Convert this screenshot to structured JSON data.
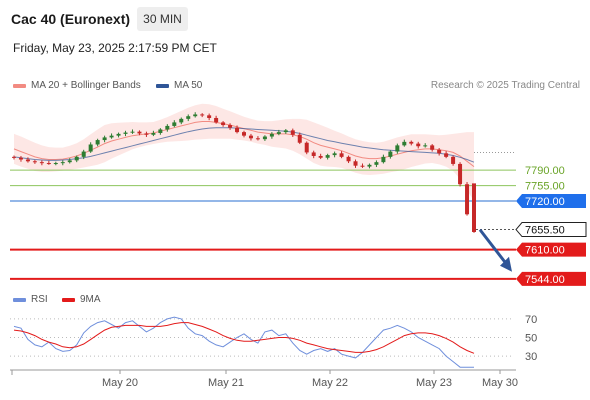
{
  "header": {
    "title": "Cac 40 (Euronext)",
    "timeframe": "30 MIN",
    "datetime": "Friday, May 23, 2025 2:17:59 PM CET"
  },
  "legend": {
    "bollinger_label": "MA 20 + Bollinger Bands",
    "ma50_label": "MA 50",
    "credit": "Research © 2025 Trading Central",
    "rsi_label": "RSI",
    "ma9_label": "9MA"
  },
  "colors": {
    "bollinger": "#f28b82",
    "band_fill": "#fde3e1",
    "ma50": "#2f5597",
    "green_level": "#8dc45d",
    "green_text": "#6aa428",
    "blue_level": "#2a6fd1",
    "blue_box": "#1f6feb",
    "red_level": "#e31b1b",
    "current_box": "#222222",
    "arrow": "#2f5597",
    "rsi": "#6f8fdc",
    "ma9": "#e31b1b",
    "candle_up": "#2e7d32",
    "candle_down": "#c62828"
  },
  "chart_data": [
    {
      "type": "candlestick",
      "title": "Cac 40 (Euronext)",
      "timeframe": "30 MIN",
      "x_ticks": [
        "May 20",
        "May 21",
        "May 22",
        "May 23",
        "May 30"
      ],
      "y_min": 7530,
      "y_max": 7960,
      "current_price": 7655.5,
      "levels": [
        {
          "value": 7790.0,
          "label": "7790.00",
          "kind": "resistance"
        },
        {
          "value": 7755.0,
          "label": "7755.00",
          "kind": "resistance"
        },
        {
          "value": 7720.0,
          "label": "7720.00",
          "kind": "pivot"
        },
        {
          "value": 7610.0,
          "label": "7610.00",
          "kind": "support"
        },
        {
          "value": 7544.0,
          "label": "7544.00",
          "kind": "support"
        }
      ],
      "projection": {
        "from": 7655,
        "to": 7560
      },
      "close_series": [
        7818,
        7814,
        7810,
        7808,
        7806,
        7805,
        7806,
        7808,
        7812,
        7820,
        7832,
        7848,
        7858,
        7864,
        7868,
        7872,
        7875,
        7877,
        7873,
        7870,
        7874,
        7882,
        7890,
        7898,
        7906,
        7912,
        7916,
        7914,
        7908,
        7898,
        7892,
        7886,
        7876,
        7868,
        7862,
        7860,
        7866,
        7872,
        7876,
        7880,
        7870,
        7852,
        7830,
        7822,
        7818,
        7824,
        7828,
        7820,
        7810,
        7800,
        7798,
        7802,
        7808,
        7820,
        7832,
        7846,
        7854,
        7850,
        7844,
        7846,
        7836,
        7828,
        7820,
        7804,
        7758,
        7690,
        7652
      ],
      "ma20_series": [
        7838,
        7832,
        7826,
        7820,
        7816,
        7814,
        7814,
        7815,
        7818,
        7822,
        7828,
        7835,
        7842,
        7850,
        7856,
        7860,
        7864,
        7868,
        7870,
        7872,
        7874,
        7878,
        7882,
        7886,
        7890,
        7894,
        7898,
        7900,
        7900,
        7898,
        7895,
        7892,
        7888,
        7884,
        7880,
        7876,
        7874,
        7872,
        7872,
        7872,
        7870,
        7866,
        7860,
        7852,
        7846,
        7842,
        7838,
        7834,
        7828,
        7822,
        7818,
        7816,
        7816,
        7818,
        7822,
        7826,
        7830,
        7834,
        7836,
        7838,
        7838,
        7836,
        7834,
        7830,
        7822,
        7810,
        7798
      ],
      "band_width_series": [
        34,
        34,
        33,
        32,
        30,
        28,
        27,
        26,
        27,
        29,
        32,
        36,
        40,
        42,
        40,
        37,
        34,
        31,
        28,
        26,
        25,
        26,
        28,
        31,
        34,
        37,
        39,
        40,
        39,
        37,
        34,
        31,
        29,
        27,
        26,
        26,
        27,
        29,
        31,
        33,
        36,
        40,
        44,
        46,
        46,
        44,
        41,
        39,
        38,
        38,
        38,
        37,
        36,
        36,
        37,
        38,
        38,
        37,
        35,
        33,
        32,
        33,
        36,
        42,
        52,
        66,
        78
      ],
      "ma50_series": [
        7820,
        7818,
        7816,
        7814,
        7813,
        7812,
        7812,
        7813,
        7814,
        7816,
        7818,
        7821,
        7825,
        7829,
        7833,
        7837,
        7841,
        7845,
        7849,
        7853,
        7857,
        7861,
        7865,
        7869,
        7873,
        7877,
        7880,
        7883,
        7885,
        7886,
        7886,
        7886,
        7885,
        7884,
        7883,
        7882,
        7881,
        7880,
        7879,
        7878,
        7876,
        7873,
        7869,
        7865,
        7861,
        7857,
        7854,
        7851,
        7848,
        7845,
        7842,
        7840,
        7838,
        7836,
        7835,
        7834,
        7833,
        7832,
        7831,
        7830,
        7829,
        7828,
        7826,
        7823,
        7819,
        7814,
        7808
      ]
    },
    {
      "type": "line",
      "title": "RSI",
      "y_ticks": [
        70,
        50,
        30
      ],
      "y_min": 15,
      "y_max": 85,
      "series": [
        {
          "name": "RSI",
          "values": [
            62,
            60,
            48,
            42,
            40,
            45,
            38,
            35,
            36,
            42,
            55,
            62,
            66,
            68,
            64,
            60,
            66,
            68,
            62,
            56,
            60,
            66,
            70,
            72,
            70,
            60,
            54,
            52,
            46,
            42,
            40,
            45,
            50,
            54,
            48,
            44,
            56,
            58,
            52,
            54,
            44,
            36,
            32,
            36,
            38,
            35,
            38,
            32,
            30,
            28,
            34,
            42,
            50,
            58,
            60,
            63,
            60,
            56,
            50,
            46,
            42,
            38,
            30,
            24,
            18,
            18,
            18
          ]
        },
        {
          "name": "9MA",
          "values": [
            58,
            57,
            55,
            52,
            48,
            45,
            43,
            40,
            39,
            40,
            43,
            48,
            53,
            58,
            61,
            62,
            63,
            63,
            63,
            62,
            62,
            62,
            63,
            65,
            66,
            66,
            64,
            62,
            59,
            56,
            52,
            49,
            47,
            46,
            46,
            47,
            48,
            49,
            50,
            50,
            49,
            47,
            44,
            42,
            40,
            38,
            37,
            36,
            35,
            34,
            34,
            35,
            37,
            40,
            44,
            48,
            52,
            54,
            55,
            55,
            54,
            52,
            49,
            45,
            40,
            36,
            33
          ]
        }
      ]
    }
  ]
}
